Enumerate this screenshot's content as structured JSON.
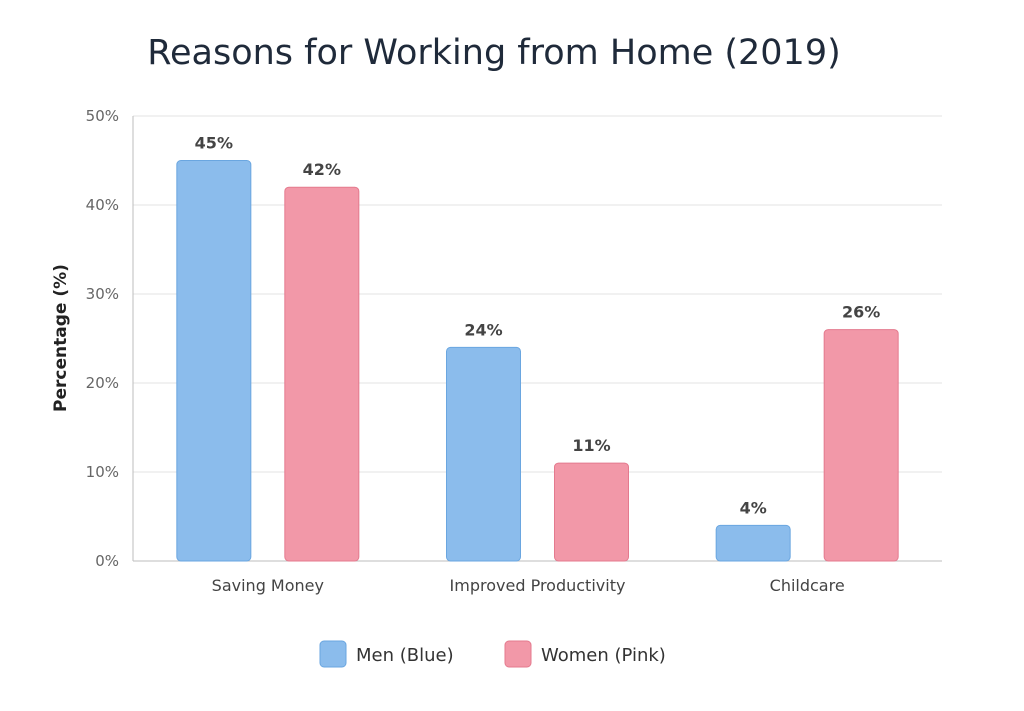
{
  "chart_data": {
    "type": "bar",
    "title": "Reasons for Working from Home (2019)",
    "xlabel": "",
    "ylabel": "Percentage (%)",
    "ylim": [
      0,
      50
    ],
    "yticks": [
      "0%",
      "10%",
      "20%",
      "30%",
      "40%",
      "50%"
    ],
    "ytick_values": [
      0,
      10,
      20,
      30,
      40,
      50
    ],
    "grid": true,
    "legend_position": "bottom-center",
    "categories": [
      "Saving Money",
      "Improved Productivity",
      "Childcare"
    ],
    "series": [
      {
        "name": "Men (Blue)",
        "values": [
          45,
          24,
          4
        ],
        "labels": [
          "45%",
          "24%",
          "4%"
        ],
        "color": "#8bbcec",
        "stroke": "#6aa6e0"
      },
      {
        "name": "Women (Pink)",
        "values": [
          42,
          11,
          26
        ],
        "labels": [
          "42%",
          "11%",
          "26%"
        ],
        "color": "#f298a8",
        "stroke": "#e47a8e"
      }
    ]
  }
}
